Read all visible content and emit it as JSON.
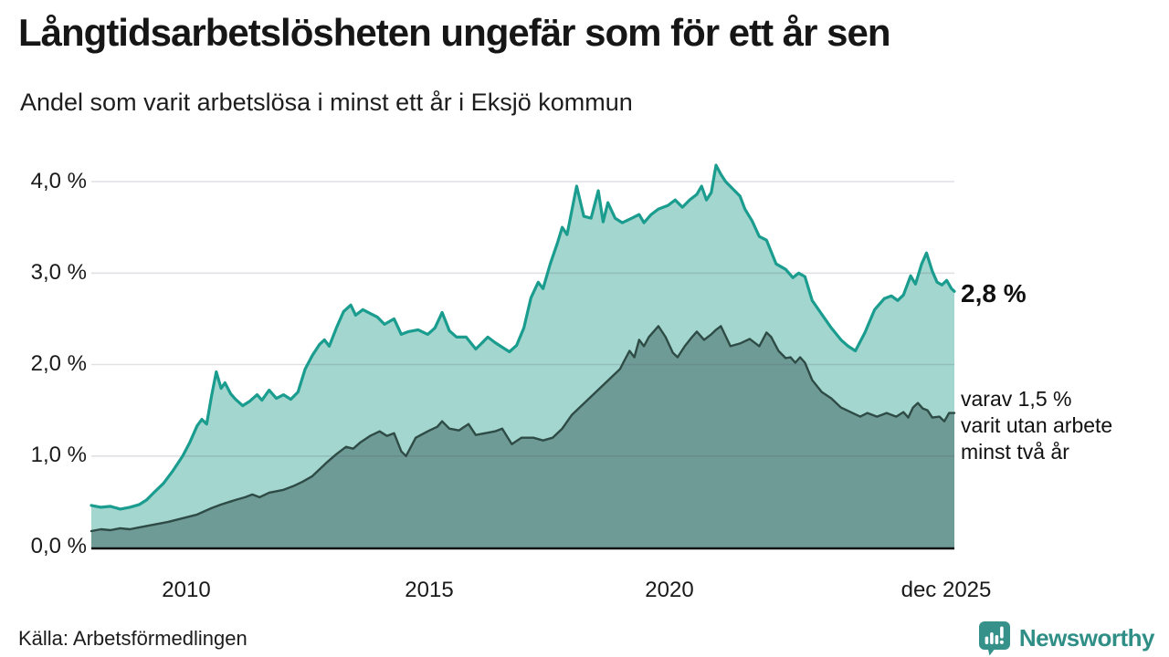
{
  "header": {
    "title": "Långtidsarbetslösheten ungefär som för ett år sen",
    "subtitle": "Andel som varit arbetslösa i minst ett år i Eksjö kommun"
  },
  "chart_data": {
    "type": "area",
    "title": "Långtidsarbetslösheten ungefär som för ett år sen",
    "subtitle": "Andel som varit arbetslösa i minst ett år i Eksjö kommun",
    "grid": "horizontal",
    "legend_position": "right-end-labels",
    "x_domain": [
      2008.0,
      2025.96
    ],
    "ylim": [
      0,
      4.0
    ],
    "y_ticks": [
      {
        "label": "4,0 %",
        "value": 4.0
      },
      {
        "label": "3,0 %",
        "value": 3.0
      },
      {
        "label": "2,0 %",
        "value": 2.0
      },
      {
        "label": "1,0 %",
        "value": 1.0
      },
      {
        "label": "0,0 %",
        "value": 0.0
      }
    ],
    "x_ticks": [
      {
        "label": "2010",
        "year": 2010
      },
      {
        "label": "2015",
        "year": 2015
      },
      {
        "label": "2020",
        "year": 2020
      },
      {
        "label": "dec 2025",
        "year": 2025.92
      }
    ],
    "series": [
      {
        "name": "Andel som varit arbetslösa i minst ett år",
        "color": "#1a9c8e",
        "fill": "#a3d6ce",
        "end_value_label": "2,8 %",
        "points": [
          [
            2008.0,
            0.46
          ],
          [
            2008.2,
            0.44
          ],
          [
            2008.4,
            0.45
          ],
          [
            2008.6,
            0.42
          ],
          [
            2008.8,
            0.44
          ],
          [
            2009.0,
            0.47
          ],
          [
            2009.15,
            0.52
          ],
          [
            2009.3,
            0.6
          ],
          [
            2009.5,
            0.7
          ],
          [
            2009.7,
            0.84
          ],
          [
            2009.9,
            1.0
          ],
          [
            2010.05,
            1.15
          ],
          [
            2010.2,
            1.33
          ],
          [
            2010.3,
            1.4
          ],
          [
            2010.4,
            1.35
          ],
          [
            2010.5,
            1.65
          ],
          [
            2010.6,
            1.92
          ],
          [
            2010.7,
            1.74
          ],
          [
            2010.78,
            1.8
          ],
          [
            2010.9,
            1.68
          ],
          [
            2011.0,
            1.62
          ],
          [
            2011.15,
            1.55
          ],
          [
            2011.3,
            1.6
          ],
          [
            2011.45,
            1.67
          ],
          [
            2011.55,
            1.61
          ],
          [
            2011.7,
            1.72
          ],
          [
            2011.85,
            1.63
          ],
          [
            2012.0,
            1.67
          ],
          [
            2012.15,
            1.62
          ],
          [
            2012.3,
            1.7
          ],
          [
            2012.45,
            1.95
          ],
          [
            2012.6,
            2.1
          ],
          [
            2012.75,
            2.22
          ],
          [
            2012.85,
            2.27
          ],
          [
            2012.95,
            2.2
          ],
          [
            2013.1,
            2.4
          ],
          [
            2013.25,
            2.58
          ],
          [
            2013.4,
            2.65
          ],
          [
            2013.5,
            2.54
          ],
          [
            2013.65,
            2.6
          ],
          [
            2013.8,
            2.56
          ],
          [
            2013.95,
            2.52
          ],
          [
            2014.1,
            2.44
          ],
          [
            2014.3,
            2.5
          ],
          [
            2014.45,
            2.33
          ],
          [
            2014.6,
            2.36
          ],
          [
            2014.8,
            2.38
          ],
          [
            2015.0,
            2.33
          ],
          [
            2015.15,
            2.4
          ],
          [
            2015.3,
            2.57
          ],
          [
            2015.45,
            2.37
          ],
          [
            2015.6,
            2.3
          ],
          [
            2015.8,
            2.3
          ],
          [
            2016.0,
            2.17
          ],
          [
            2016.1,
            2.22
          ],
          [
            2016.25,
            2.3
          ],
          [
            2016.4,
            2.24
          ],
          [
            2016.55,
            2.19
          ],
          [
            2016.7,
            2.14
          ],
          [
            2016.85,
            2.21
          ],
          [
            2017.0,
            2.4
          ],
          [
            2017.15,
            2.73
          ],
          [
            2017.3,
            2.9
          ],
          [
            2017.4,
            2.83
          ],
          [
            2017.55,
            3.1
          ],
          [
            2017.7,
            3.33
          ],
          [
            2017.8,
            3.5
          ],
          [
            2017.9,
            3.42
          ],
          [
            2018.1,
            3.95
          ],
          [
            2018.25,
            3.62
          ],
          [
            2018.4,
            3.6
          ],
          [
            2018.55,
            3.9
          ],
          [
            2018.65,
            3.56
          ],
          [
            2018.75,
            3.77
          ],
          [
            2018.9,
            3.6
          ],
          [
            2019.05,
            3.55
          ],
          [
            2019.25,
            3.6
          ],
          [
            2019.4,
            3.64
          ],
          [
            2019.5,
            3.55
          ],
          [
            2019.65,
            3.64
          ],
          [
            2019.8,
            3.7
          ],
          [
            2020.0,
            3.74
          ],
          [
            2020.15,
            3.8
          ],
          [
            2020.3,
            3.72
          ],
          [
            2020.45,
            3.8
          ],
          [
            2020.6,
            3.86
          ],
          [
            2020.7,
            3.95
          ],
          [
            2020.8,
            3.8
          ],
          [
            2020.9,
            3.88
          ],
          [
            2021.0,
            4.18
          ],
          [
            2021.1,
            4.08
          ],
          [
            2021.2,
            4.0
          ],
          [
            2021.35,
            3.92
          ],
          [
            2021.5,
            3.84
          ],
          [
            2021.6,
            3.7
          ],
          [
            2021.75,
            3.57
          ],
          [
            2021.9,
            3.4
          ],
          [
            2022.05,
            3.36
          ],
          [
            2022.25,
            3.1
          ],
          [
            2022.45,
            3.04
          ],
          [
            2022.6,
            2.95
          ],
          [
            2022.72,
            3.0
          ],
          [
            2022.85,
            2.96
          ],
          [
            2023.0,
            2.7
          ],
          [
            2023.2,
            2.55
          ],
          [
            2023.4,
            2.4
          ],
          [
            2023.6,
            2.27
          ],
          [
            2023.75,
            2.2
          ],
          [
            2023.9,
            2.15
          ],
          [
            2024.1,
            2.35
          ],
          [
            2024.3,
            2.6
          ],
          [
            2024.5,
            2.72
          ],
          [
            2024.65,
            2.75
          ],
          [
            2024.78,
            2.7
          ],
          [
            2024.9,
            2.76
          ],
          [
            2025.05,
            2.97
          ],
          [
            2025.15,
            2.88
          ],
          [
            2025.28,
            3.1
          ],
          [
            2025.38,
            3.22
          ],
          [
            2025.5,
            3.02
          ],
          [
            2025.6,
            2.9
          ],
          [
            2025.7,
            2.87
          ],
          [
            2025.8,
            2.92
          ],
          [
            2025.9,
            2.83
          ],
          [
            2025.96,
            2.8
          ]
        ]
      },
      {
        "name": "Varav varit utan arbete minst två år",
        "color": "#2e4b46",
        "fill": "#6f9b96",
        "end_value_label": "varav 1,5 %\nvarit utan arbete\nminst två år",
        "points": [
          [
            2008.0,
            0.18
          ],
          [
            2008.2,
            0.2
          ],
          [
            2008.4,
            0.19
          ],
          [
            2008.6,
            0.21
          ],
          [
            2008.8,
            0.2
          ],
          [
            2009.0,
            0.22
          ],
          [
            2009.3,
            0.25
          ],
          [
            2009.6,
            0.28
          ],
          [
            2009.9,
            0.32
          ],
          [
            2010.2,
            0.36
          ],
          [
            2010.5,
            0.43
          ],
          [
            2010.7,
            0.47
          ],
          [
            2011.0,
            0.52
          ],
          [
            2011.2,
            0.55
          ],
          [
            2011.35,
            0.58
          ],
          [
            2011.5,
            0.55
          ],
          [
            2011.7,
            0.6
          ],
          [
            2012.0,
            0.63
          ],
          [
            2012.2,
            0.67
          ],
          [
            2012.4,
            0.72
          ],
          [
            2012.6,
            0.78
          ],
          [
            2012.9,
            0.93
          ],
          [
            2013.1,
            1.02
          ],
          [
            2013.3,
            1.1
          ],
          [
            2013.45,
            1.08
          ],
          [
            2013.6,
            1.15
          ],
          [
            2013.8,
            1.22
          ],
          [
            2014.0,
            1.27
          ],
          [
            2014.15,
            1.22
          ],
          [
            2014.3,
            1.25
          ],
          [
            2014.45,
            1.05
          ],
          [
            2014.55,
            1.0
          ],
          [
            2014.75,
            1.2
          ],
          [
            2015.0,
            1.27
          ],
          [
            2015.2,
            1.32
          ],
          [
            2015.3,
            1.38
          ],
          [
            2015.45,
            1.3
          ],
          [
            2015.65,
            1.28
          ],
          [
            2015.85,
            1.35
          ],
          [
            2016.0,
            1.23
          ],
          [
            2016.2,
            1.25
          ],
          [
            2016.4,
            1.27
          ],
          [
            2016.55,
            1.3
          ],
          [
            2016.75,
            1.13
          ],
          [
            2016.95,
            1.2
          ],
          [
            2017.2,
            1.2
          ],
          [
            2017.4,
            1.17
          ],
          [
            2017.6,
            1.2
          ],
          [
            2017.8,
            1.3
          ],
          [
            2018.0,
            1.45
          ],
          [
            2018.2,
            1.55
          ],
          [
            2018.4,
            1.65
          ],
          [
            2018.6,
            1.75
          ],
          [
            2018.8,
            1.85
          ],
          [
            2019.0,
            1.95
          ],
          [
            2019.1,
            2.05
          ],
          [
            2019.2,
            2.15
          ],
          [
            2019.3,
            2.08
          ],
          [
            2019.4,
            2.27
          ],
          [
            2019.5,
            2.2
          ],
          [
            2019.6,
            2.3
          ],
          [
            2019.8,
            2.42
          ],
          [
            2019.95,
            2.3
          ],
          [
            2020.1,
            2.13
          ],
          [
            2020.2,
            2.08
          ],
          [
            2020.35,
            2.2
          ],
          [
            2020.5,
            2.3
          ],
          [
            2020.6,
            2.36
          ],
          [
            2020.75,
            2.27
          ],
          [
            2020.9,
            2.33
          ],
          [
            2021.0,
            2.38
          ],
          [
            2021.1,
            2.42
          ],
          [
            2021.3,
            2.2
          ],
          [
            2021.5,
            2.23
          ],
          [
            2021.7,
            2.28
          ],
          [
            2021.9,
            2.2
          ],
          [
            2022.05,
            2.35
          ],
          [
            2022.15,
            2.3
          ],
          [
            2022.3,
            2.15
          ],
          [
            2022.45,
            2.07
          ],
          [
            2022.55,
            2.08
          ],
          [
            2022.65,
            2.02
          ],
          [
            2022.75,
            2.08
          ],
          [
            2022.85,
            2.02
          ],
          [
            2023.0,
            1.83
          ],
          [
            2023.2,
            1.7
          ],
          [
            2023.4,
            1.63
          ],
          [
            2023.6,
            1.53
          ],
          [
            2023.8,
            1.48
          ],
          [
            2024.0,
            1.43
          ],
          [
            2024.15,
            1.47
          ],
          [
            2024.35,
            1.43
          ],
          [
            2024.55,
            1.47
          ],
          [
            2024.75,
            1.43
          ],
          [
            2024.9,
            1.48
          ],
          [
            2025.0,
            1.42
          ],
          [
            2025.1,
            1.53
          ],
          [
            2025.2,
            1.58
          ],
          [
            2025.3,
            1.52
          ],
          [
            2025.4,
            1.5
          ],
          [
            2025.5,
            1.42
          ],
          [
            2025.65,
            1.43
          ],
          [
            2025.75,
            1.38
          ],
          [
            2025.85,
            1.47
          ],
          [
            2025.96,
            1.47
          ]
        ]
      }
    ]
  },
  "footer": {
    "source": "Källa: Arbetsförmedlingen",
    "brand": "Newsworthy"
  }
}
